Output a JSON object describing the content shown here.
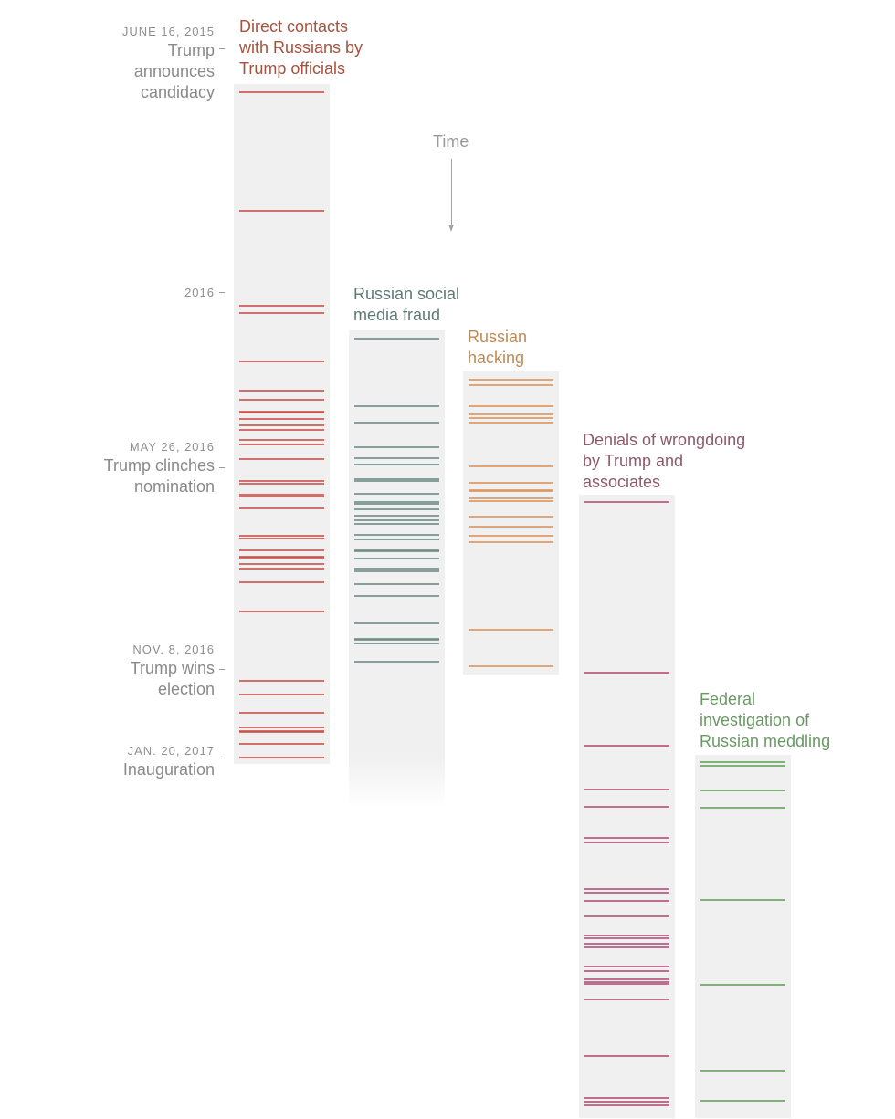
{
  "chart_data": {
    "type": "timeline",
    "orientation": "vertical",
    "time_axis": {
      "label": "Time",
      "direction": "down",
      "units": "timeline fraction: 0 = June 16, 2015, 1 = Jan. 20, 2017 (values >1 extend past inauguration)"
    },
    "milestones": [
      {
        "date": "JUNE 16, 2015",
        "event": "Trump announces candidacy",
        "t": 0.0
      },
      {
        "date": "2016",
        "event": "",
        "t": 0.3
      },
      {
        "date": "MAY 26, 2016",
        "event": "Trump clinches nomination",
        "t": 0.565
      },
      {
        "date": "NOV. 8, 2016",
        "event": "Trump wins election",
        "t": 0.865
      },
      {
        "date": "JAN. 20, 2017",
        "event": "Inauguration",
        "t": 1.0
      }
    ],
    "series": [
      {
        "name": "Direct contacts with Russians by Trump officials",
        "color": "#c8504a",
        "title_color": "#a8513d",
        "range": [
          -0.012,
          1.01
        ],
        "fade_out": false,
        "events": [
          0.0,
          0.179,
          0.321,
          0.332,
          0.404,
          0.448,
          0.462,
          0.48,
          0.482,
          0.491,
          0.5,
          0.508,
          0.523,
          0.53,
          0.551,
          0.585,
          0.589,
          0.605,
          0.607,
          0.625,
          0.666,
          0.671,
          0.688,
          0.698,
          0.7,
          0.709,
          0.716,
          0.736,
          0.78,
          0.885,
          0.905,
          0.933,
          0.955,
          0.96,
          0.962,
          0.98,
          1.0
        ]
      },
      {
        "name": "Russian social media fraud",
        "color": "#6c8b84",
        "title_color": "#5f7a74",
        "range": [
          0.358,
          1.0
        ],
        "fade_out": true,
        "events": [
          0.37,
          0.472,
          0.496,
          0.533,
          0.55,
          0.559,
          0.582,
          0.584,
          0.603,
          0.616,
          0.619,
          0.627,
          0.637,
          0.644,
          0.649,
          0.665,
          0.672,
          0.689,
          0.69,
          0.701,
          0.716,
          0.72,
          0.74,
          0.757,
          0.799,
          0.821,
          0.823,
          0.829,
          0.856
        ]
      },
      {
        "name": "Russian hacking",
        "color": "#dc9459",
        "title_color": "#c08a55",
        "range": [
          0.42,
          0.875
        ],
        "fade_out": false,
        "events": [
          0.432,
          0.44,
          0.472,
          0.484,
          0.49,
          0.496,
          0.562,
          0.587,
          0.598,
          0.6,
          0.611,
          0.614,
          0.638,
          0.653,
          0.667,
          0.676,
          0.808,
          0.863
        ]
      },
      {
        "name": "Denials of wrongdoing by Trump and associates",
        "color": "#b04f78",
        "title_color": "#8e5a6a",
        "range": [
          0.605,
          1.542
        ],
        "fade_out": false,
        "events": [
          0.616,
          0.872,
          0.982,
          1.048,
          1.074,
          1.121,
          1.127,
          1.197,
          1.203,
          1.215,
          1.238,
          1.268,
          1.272,
          1.28,
          1.286,
          1.314,
          1.321,
          1.334,
          1.337,
          1.34,
          1.364,
          1.448,
          1.512,
          1.517,
          1.522
        ]
      },
      {
        "name": "Federal investigation of Russian meddling",
        "color": "#66a05c",
        "title_color": "#6a9a64",
        "range": [
          0.996,
          1.542
        ],
        "fade_out": false,
        "events": [
          1.007,
          1.012,
          1.049,
          1.075,
          1.214,
          1.342,
          1.47,
          1.516
        ]
      }
    ]
  }
}
